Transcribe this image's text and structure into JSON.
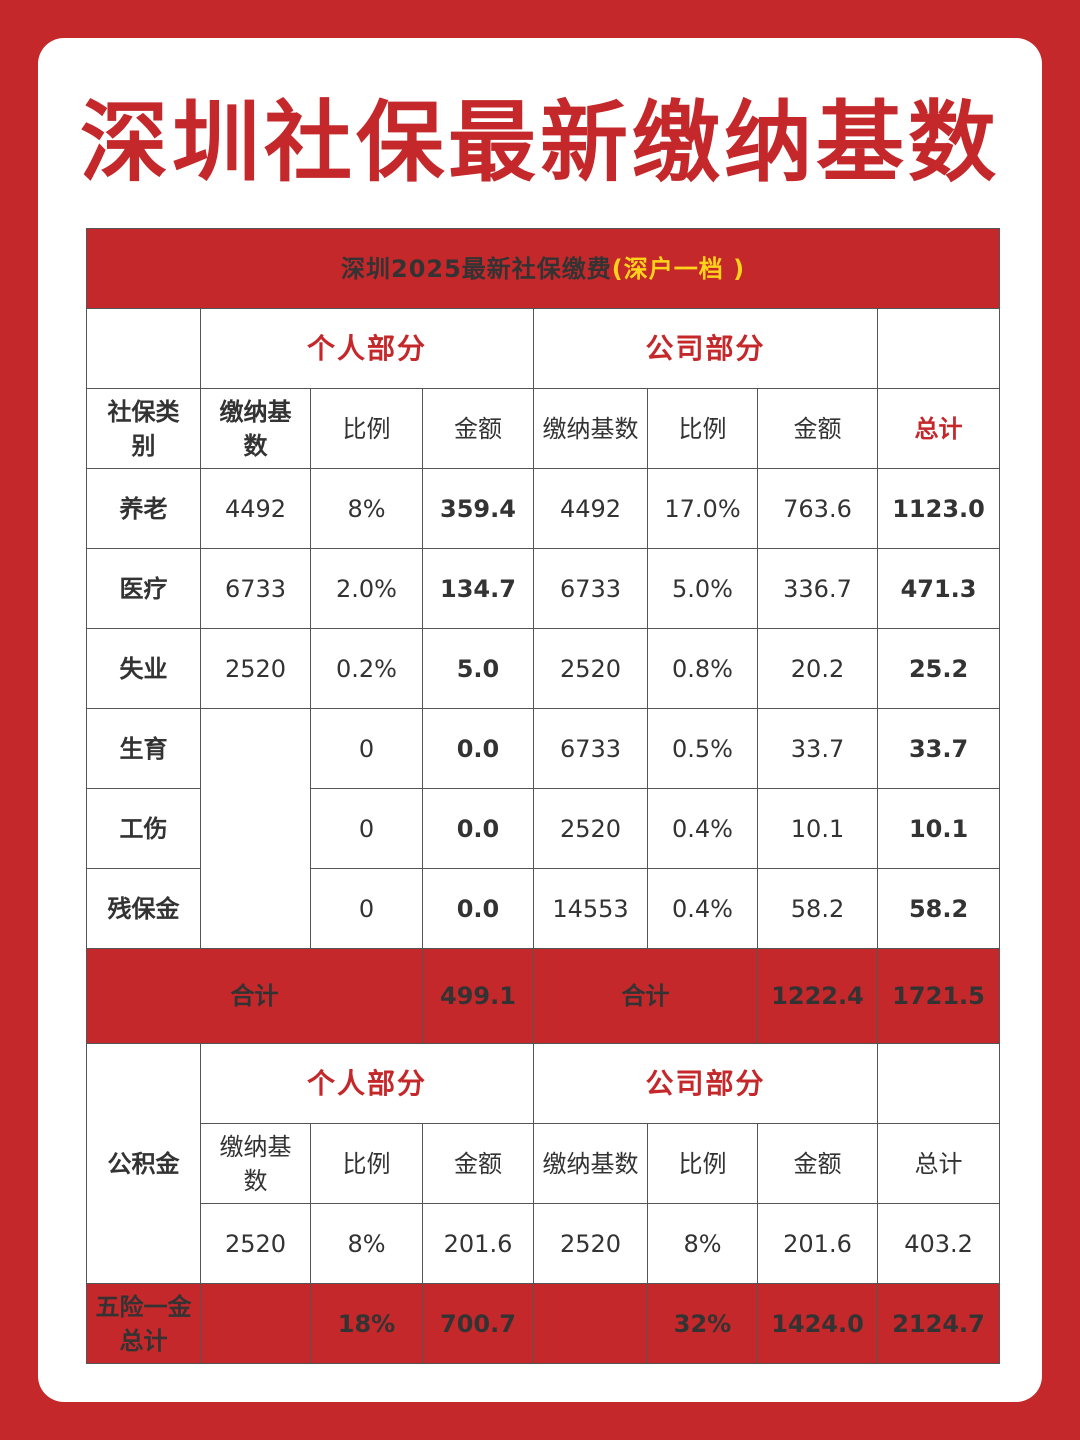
{
  "title": "深圳社保最新缴纳基数",
  "table_header": {
    "main": "深圳2025最新社保缴费",
    "sub": "(深户一档 )"
  },
  "sections": {
    "personal": "个人部分",
    "company": "公司部分"
  },
  "columns": {
    "category": "社保类别",
    "personal_base": "缴纳基数",
    "personal_rate": "比例",
    "personal_amount": "金额",
    "company_base": "缴纳基数",
    "company_rate": "比例",
    "company_amount": "金额",
    "total": "总计"
  },
  "rows": [
    {
      "name": "养老",
      "p_base": "4492",
      "p_rate": "8%",
      "p_amount": "359.4",
      "c_base": "4492",
      "c_rate": "17.0%",
      "c_amount": "763.6",
      "total": "1123.0"
    },
    {
      "name": "医疗",
      "p_base": "6733",
      "p_rate": "2.0%",
      "p_amount": "134.7",
      "c_base": "6733",
      "c_rate": "5.0%",
      "c_amount": "336.7",
      "total": "471.3"
    },
    {
      "name": "失业",
      "p_base": "2520",
      "p_rate": "0.2%",
      "p_amount": "5.0",
      "c_base": "2520",
      "c_rate": "0.8%",
      "c_amount": "20.2",
      "total": "25.2"
    },
    {
      "name": "生育",
      "p_rate": "0",
      "p_amount": "0.0",
      "c_base": "6733",
      "c_rate": "0.5%",
      "c_amount": "33.7",
      "total": "33.7"
    },
    {
      "name": "工伤",
      "p_rate": "0",
      "p_amount": "0.0",
      "c_base": "2520",
      "c_rate": "0.4%",
      "c_amount": "10.1",
      "total": "10.1"
    },
    {
      "name": "残保金",
      "p_rate": "0",
      "p_amount": "0.0",
      "c_base": "14553",
      "c_rate": "0.4%",
      "c_amount": "58.2",
      "total": "58.2"
    }
  ],
  "subtotal": {
    "personal_label": "合计",
    "personal_amount": "499.1",
    "company_label": "合计",
    "company_amount": "1222.4",
    "total": "1721.5"
  },
  "housing_fund": {
    "label": "公积金",
    "columns": {
      "personal_base": "缴纳基数",
      "personal_rate": "比例",
      "personal_amount": "金额",
      "company_base": "缴纳基数",
      "company_rate": "比例",
      "company_amount": "金额",
      "total": "总计"
    },
    "values": {
      "p_base": "2520",
      "p_rate": "8%",
      "p_amount": "201.6",
      "c_base": "2520",
      "c_rate": "8%",
      "c_amount": "201.6",
      "total": "403.2"
    }
  },
  "grand_total": {
    "label": "五险一金总计",
    "p_rate": "18%",
    "p_amount": "700.7",
    "c_rate": "32%",
    "c_amount": "1424.0",
    "total": "2124.7"
  },
  "colors": {
    "brand_red": "#c4282b",
    "accent_yellow": "#ffd31a"
  }
}
